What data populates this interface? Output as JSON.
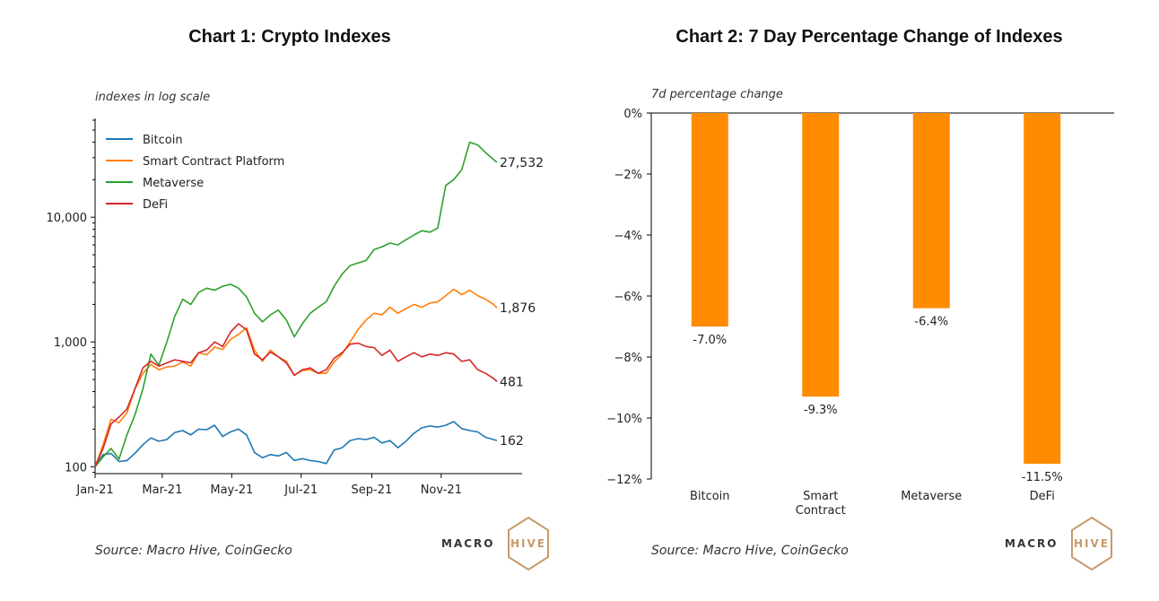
{
  "left": {
    "title": "Chart 1: Crypto Indexes",
    "source": "Source: Macro Hive, CoinGecko",
    "logo": {
      "part1": "MACRO",
      "part2": "HIVE"
    },
    "chart_data": {
      "type": "line",
      "subtitle": "indexes in log scale",
      "yscale": "log",
      "ylim": [
        88,
        62000
      ],
      "yticks": [
        {
          "v": 100,
          "label": "100"
        },
        {
          "v": 1000,
          "label": "1,000"
        },
        {
          "v": 10000,
          "label": "10,000"
        }
      ],
      "xlim": [
        "2021-01-01",
        "2021-12-31"
      ],
      "xticks": [
        {
          "x": "2021-01-01",
          "label": "Jan-21"
        },
        {
          "x": "2021-03-01",
          "label": "Mar-21"
        },
        {
          "x": "2021-05-01",
          "label": "May-21"
        },
        {
          "x": "2021-07-01",
          "label": "Jul-21"
        },
        {
          "x": "2021-09-01",
          "label": "Sep-21"
        },
        {
          "x": "2021-11-01",
          "label": "Nov-21"
        }
      ],
      "legend": "top-left",
      "grid": false,
      "series": [
        {
          "name": "Bitcoin",
          "color": "#1f77b4",
          "end_label": "162",
          "points": [
            [
              "2021-01-01",
              100
            ],
            [
              "2021-01-08",
              125
            ],
            [
              "2021-01-15",
              128
            ],
            [
              "2021-01-22",
              110
            ],
            [
              "2021-01-29",
              112
            ],
            [
              "2021-02-05",
              128
            ],
            [
              "2021-02-12",
              150
            ],
            [
              "2021-02-19",
              170
            ],
            [
              "2021-02-26",
              160
            ],
            [
              "2021-03-05",
              165
            ],
            [
              "2021-03-12",
              188
            ],
            [
              "2021-03-19",
              195
            ],
            [
              "2021-03-26",
              180
            ],
            [
              "2021-04-02",
              200
            ],
            [
              "2021-04-09",
              198
            ],
            [
              "2021-04-16",
              215
            ],
            [
              "2021-04-23",
              175
            ],
            [
              "2021-04-30",
              190
            ],
            [
              "2021-05-07",
              200
            ],
            [
              "2021-05-14",
              180
            ],
            [
              "2021-05-21",
              130
            ],
            [
              "2021-05-28",
              118
            ],
            [
              "2021-06-04",
              125
            ],
            [
              "2021-06-11",
              122
            ],
            [
              "2021-06-18",
              130
            ],
            [
              "2021-06-25",
              112
            ],
            [
              "2021-07-02",
              116
            ],
            [
              "2021-07-09",
              112
            ],
            [
              "2021-07-16",
              110
            ],
            [
              "2021-07-23",
              106
            ],
            [
              "2021-07-30",
              136
            ],
            [
              "2021-08-06",
              142
            ],
            [
              "2021-08-13",
              162
            ],
            [
              "2021-08-20",
              168
            ],
            [
              "2021-08-27",
              165
            ],
            [
              "2021-09-03",
              172
            ],
            [
              "2021-09-10",
              155
            ],
            [
              "2021-09-17",
              162
            ],
            [
              "2021-09-24",
              142
            ],
            [
              "2021-10-01",
              160
            ],
            [
              "2021-10-08",
              185
            ],
            [
              "2021-10-15",
              205
            ],
            [
              "2021-10-22",
              212
            ],
            [
              "2021-10-29",
              208
            ],
            [
              "2021-11-05",
              215
            ],
            [
              "2021-11-12",
              230
            ],
            [
              "2021-11-19",
              202
            ],
            [
              "2021-11-26",
              195
            ],
            [
              "2021-12-03",
              190
            ],
            [
              "2021-12-10",
              172
            ],
            [
              "2021-12-17",
              165
            ],
            [
              "2021-12-20",
              162
            ]
          ]
        },
        {
          "name": "Smart Contract Platform",
          "color": "#ff7f0e",
          "end_label": "1,876",
          "points": [
            [
              "2021-01-01",
              100
            ],
            [
              "2021-01-08",
              150
            ],
            [
              "2021-01-15",
              240
            ],
            [
              "2021-01-22",
              225
            ],
            [
              "2021-01-29",
              270
            ],
            [
              "2021-02-05",
              420
            ],
            [
              "2021-02-12",
              560
            ],
            [
              "2021-02-19",
              660
            ],
            [
              "2021-02-26",
              600
            ],
            [
              "2021-03-05",
              630
            ],
            [
              "2021-03-12",
              640
            ],
            [
              "2021-03-19",
              690
            ],
            [
              "2021-03-26",
              640
            ],
            [
              "2021-04-02",
              820
            ],
            [
              "2021-04-09",
              790
            ],
            [
              "2021-04-16",
              910
            ],
            [
              "2021-04-23",
              870
            ],
            [
              "2021-04-30",
              1050
            ],
            [
              "2021-05-07",
              1150
            ],
            [
              "2021-05-14",
              1300
            ],
            [
              "2021-05-21",
              860
            ],
            [
              "2021-05-28",
              700
            ],
            [
              "2021-06-04",
              860
            ],
            [
              "2021-06-11",
              760
            ],
            [
              "2021-06-18",
              700
            ],
            [
              "2021-06-25",
              540
            ],
            [
              "2021-07-02",
              590
            ],
            [
              "2021-07-09",
              600
            ],
            [
              "2021-07-16",
              560
            ],
            [
              "2021-07-23",
              560
            ],
            [
              "2021-07-30",
              690
            ],
            [
              "2021-08-06",
              800
            ],
            [
              "2021-08-13",
              1000
            ],
            [
              "2021-08-20",
              1260
            ],
            [
              "2021-08-27",
              1500
            ],
            [
              "2021-09-03",
              1700
            ],
            [
              "2021-09-10",
              1650
            ],
            [
              "2021-09-17",
              1900
            ],
            [
              "2021-09-24",
              1700
            ],
            [
              "2021-10-01",
              1850
            ],
            [
              "2021-10-08",
              2000
            ],
            [
              "2021-10-15",
              1900
            ],
            [
              "2021-10-22",
              2050
            ],
            [
              "2021-10-29",
              2100
            ],
            [
              "2021-11-05",
              2350
            ],
            [
              "2021-11-12",
              2650
            ],
            [
              "2021-11-19",
              2400
            ],
            [
              "2021-11-26",
              2600
            ],
            [
              "2021-12-03",
              2350
            ],
            [
              "2021-12-10",
              2200
            ],
            [
              "2021-12-17",
              2000
            ],
            [
              "2021-12-20",
              1876
            ]
          ]
        },
        {
          "name": "Metaverse",
          "color": "#2ca02c",
          "end_label": "27,532",
          "points": [
            [
              "2021-01-01",
              100
            ],
            [
              "2021-01-08",
              120
            ],
            [
              "2021-01-15",
              140
            ],
            [
              "2021-01-22",
              115
            ],
            [
              "2021-01-29",
              180
            ],
            [
              "2021-02-05",
              260
            ],
            [
              "2021-02-12",
              420
            ],
            [
              "2021-02-19",
              800
            ],
            [
              "2021-02-26",
              650
            ],
            [
              "2021-03-05",
              1000
            ],
            [
              "2021-03-12",
              1600
            ],
            [
              "2021-03-19",
              2200
            ],
            [
              "2021-03-26",
              2000
            ],
            [
              "2021-04-02",
              2500
            ],
            [
              "2021-04-09",
              2700
            ],
            [
              "2021-04-16",
              2600
            ],
            [
              "2021-04-23",
              2800
            ],
            [
              "2021-04-30",
              2900
            ],
            [
              "2021-05-07",
              2700
            ],
            [
              "2021-05-14",
              2300
            ],
            [
              "2021-05-21",
              1700
            ],
            [
              "2021-05-28",
              1450
            ],
            [
              "2021-06-04",
              1650
            ],
            [
              "2021-06-11",
              1800
            ],
            [
              "2021-06-18",
              1500
            ],
            [
              "2021-06-25",
              1100
            ],
            [
              "2021-07-02",
              1400
            ],
            [
              "2021-07-09",
              1700
            ],
            [
              "2021-07-16",
              1900
            ],
            [
              "2021-07-23",
              2100
            ],
            [
              "2021-07-30",
              2800
            ],
            [
              "2021-08-06",
              3500
            ],
            [
              "2021-08-13",
              4100
            ],
            [
              "2021-08-20",
              4300
            ],
            [
              "2021-08-27",
              4500
            ],
            [
              "2021-09-03",
              5500
            ],
            [
              "2021-09-10",
              5800
            ],
            [
              "2021-09-17",
              6200
            ],
            [
              "2021-09-24",
              6000
            ],
            [
              "2021-10-01",
              6600
            ],
            [
              "2021-10-08",
              7200
            ],
            [
              "2021-10-15",
              7800
            ],
            [
              "2021-10-22",
              7600
            ],
            [
              "2021-10-29",
              8200
            ],
            [
              "2021-11-05",
              18000
            ],
            [
              "2021-11-12",
              20000
            ],
            [
              "2021-11-19",
              24000
            ],
            [
              "2021-11-26",
              40000
            ],
            [
              "2021-12-03",
              38000
            ],
            [
              "2021-12-10",
              33000
            ],
            [
              "2021-12-17",
              29000
            ],
            [
              "2021-12-20",
              27532
            ]
          ]
        },
        {
          "name": "DeFi",
          "color": "#d62728",
          "end_label": "481",
          "points": [
            [
              "2021-01-01",
              100
            ],
            [
              "2021-01-08",
              140
            ],
            [
              "2021-01-15",
              220
            ],
            [
              "2021-01-22",
              250
            ],
            [
              "2021-01-29",
              290
            ],
            [
              "2021-02-05",
              420
            ],
            [
              "2021-02-12",
              620
            ],
            [
              "2021-02-19",
              700
            ],
            [
              "2021-02-26",
              640
            ],
            [
              "2021-03-05",
              680
            ],
            [
              "2021-03-12",
              720
            ],
            [
              "2021-03-19",
              700
            ],
            [
              "2021-03-26",
              680
            ],
            [
              "2021-04-02",
              820
            ],
            [
              "2021-04-09",
              860
            ],
            [
              "2021-04-16",
              1000
            ],
            [
              "2021-04-23",
              920
            ],
            [
              "2021-04-30",
              1200
            ],
            [
              "2021-05-07",
              1400
            ],
            [
              "2021-05-14",
              1250
            ],
            [
              "2021-05-21",
              800
            ],
            [
              "2021-05-28",
              720
            ],
            [
              "2021-06-04",
              830
            ],
            [
              "2021-06-11",
              760
            ],
            [
              "2021-06-18",
              680
            ],
            [
              "2021-06-25",
              540
            ],
            [
              "2021-07-02",
              600
            ],
            [
              "2021-07-09",
              620
            ],
            [
              "2021-07-16",
              560
            ],
            [
              "2021-07-23",
              600
            ],
            [
              "2021-07-30",
              740
            ],
            [
              "2021-08-06",
              820
            ],
            [
              "2021-08-13",
              960
            ],
            [
              "2021-08-20",
              980
            ],
            [
              "2021-08-27",
              920
            ],
            [
              "2021-09-03",
              900
            ],
            [
              "2021-09-10",
              780
            ],
            [
              "2021-09-17",
              860
            ],
            [
              "2021-09-24",
              700
            ],
            [
              "2021-10-01",
              760
            ],
            [
              "2021-10-08",
              820
            ],
            [
              "2021-10-15",
              760
            ],
            [
              "2021-10-22",
              800
            ],
            [
              "2021-10-29",
              780
            ],
            [
              "2021-11-05",
              820
            ],
            [
              "2021-11-12",
              800
            ],
            [
              "2021-11-19",
              700
            ],
            [
              "2021-11-26",
              720
            ],
            [
              "2021-12-03",
              600
            ],
            [
              "2021-12-10",
              560
            ],
            [
              "2021-12-17",
              510
            ],
            [
              "2021-12-20",
              481
            ]
          ]
        }
      ]
    }
  },
  "right": {
    "title": "Chart 2: 7 Day Percentage Change of Indexes",
    "source": "Source: Macro Hive, CoinGecko",
    "logo": {
      "part1": "MACRO",
      "part2": "HIVE"
    },
    "chart_data": {
      "type": "bar",
      "subtitle": "7d percentage change",
      "categories": [
        "Bitcoin",
        "Smart Contract",
        "Metaverse",
        "DeFi"
      ],
      "values": [
        -7.0,
        -9.3,
        -6.4,
        -11.5
      ],
      "value_labels": [
        "-7.0%",
        "-9.3%",
        "-6.4%",
        "-11.5%"
      ],
      "ylim": [
        -12,
        0
      ],
      "yticks": [
        {
          "v": 0,
          "label": "0%"
        },
        {
          "v": -2,
          "label": "−2%"
        },
        {
          "v": -4,
          "label": "−4%"
        },
        {
          "v": -6,
          "label": "−6%"
        },
        {
          "v": -8,
          "label": "−8%"
        },
        {
          "v": -10,
          "label": "−10%"
        },
        {
          "v": -12,
          "label": "−12%"
        }
      ],
      "color": "#ff8c00",
      "grid": false
    }
  }
}
